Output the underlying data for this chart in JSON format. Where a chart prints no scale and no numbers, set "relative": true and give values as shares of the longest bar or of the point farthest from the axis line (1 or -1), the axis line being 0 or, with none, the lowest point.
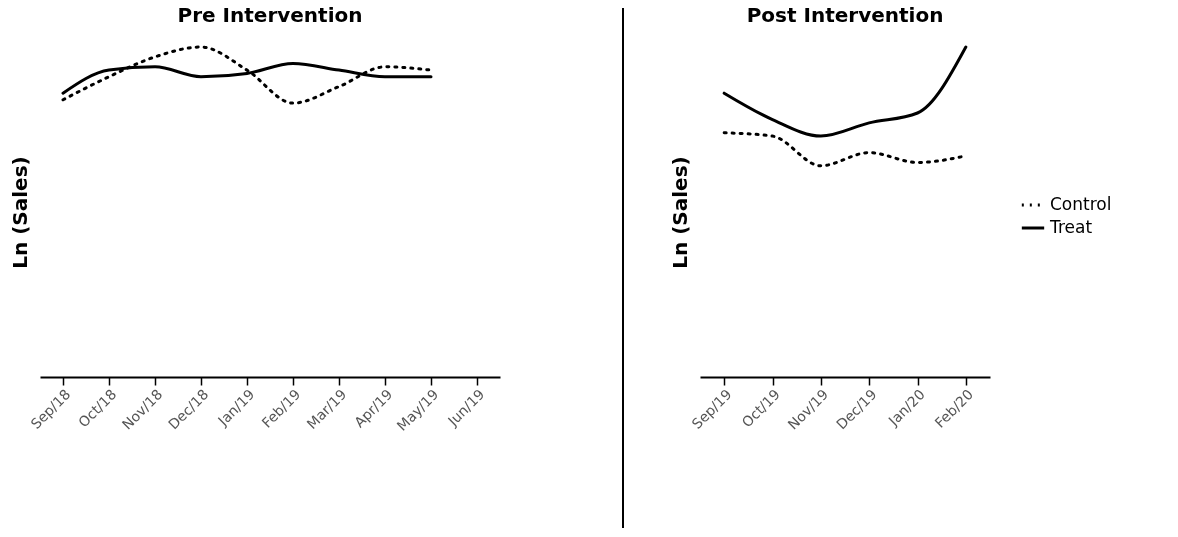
{
  "chart_data": [
    {
      "type": "line",
      "title": "Pre Intervention",
      "ylabel": "Ln (Sales)",
      "relative": true,
      "legend": false,
      "categories": [
        "Sep/18",
        "Oct/18",
        "Nov/18",
        "Dec/18",
        "Jan/19",
        "Feb/19",
        "Mar/19",
        "Apr/19",
        "May/19",
        "Jun/19"
      ],
      "series": [
        {
          "color": "#000000",
          "line_style": "dotted",
          "values": [
            0.84,
            0.91,
            0.97,
            1.0,
            0.93,
            0.83,
            0.88,
            0.94,
            0.93,
            null
          ]
        },
        {
          "color": "#000000",
          "line_style": "solid",
          "values": [
            0.86,
            0.93,
            0.94,
            0.91,
            0.92,
            0.95,
            0.93,
            0.91,
            0.91,
            null
          ]
        }
      ]
    },
    {
      "type": "line",
      "title": "Post Intervention",
      "ylabel": "Ln (Sales)",
      "relative": true,
      "legend": "right",
      "categories": [
        "Sep/19",
        "Oct/19",
        "Nov/19",
        "Dec/19",
        "Jan/20",
        "Feb/20"
      ],
      "series": [
        {
          "name": "Control",
          "color": "#000000",
          "line_style": "dotted",
          "values": [
            0.74,
            0.73,
            0.64,
            0.68,
            0.65,
            0.67
          ]
        },
        {
          "name": "Treat",
          "color": "#000000",
          "line_style": "solid",
          "values": [
            0.86,
            0.78,
            0.73,
            0.77,
            0.8,
            1.0
          ]
        }
      ]
    }
  ]
}
